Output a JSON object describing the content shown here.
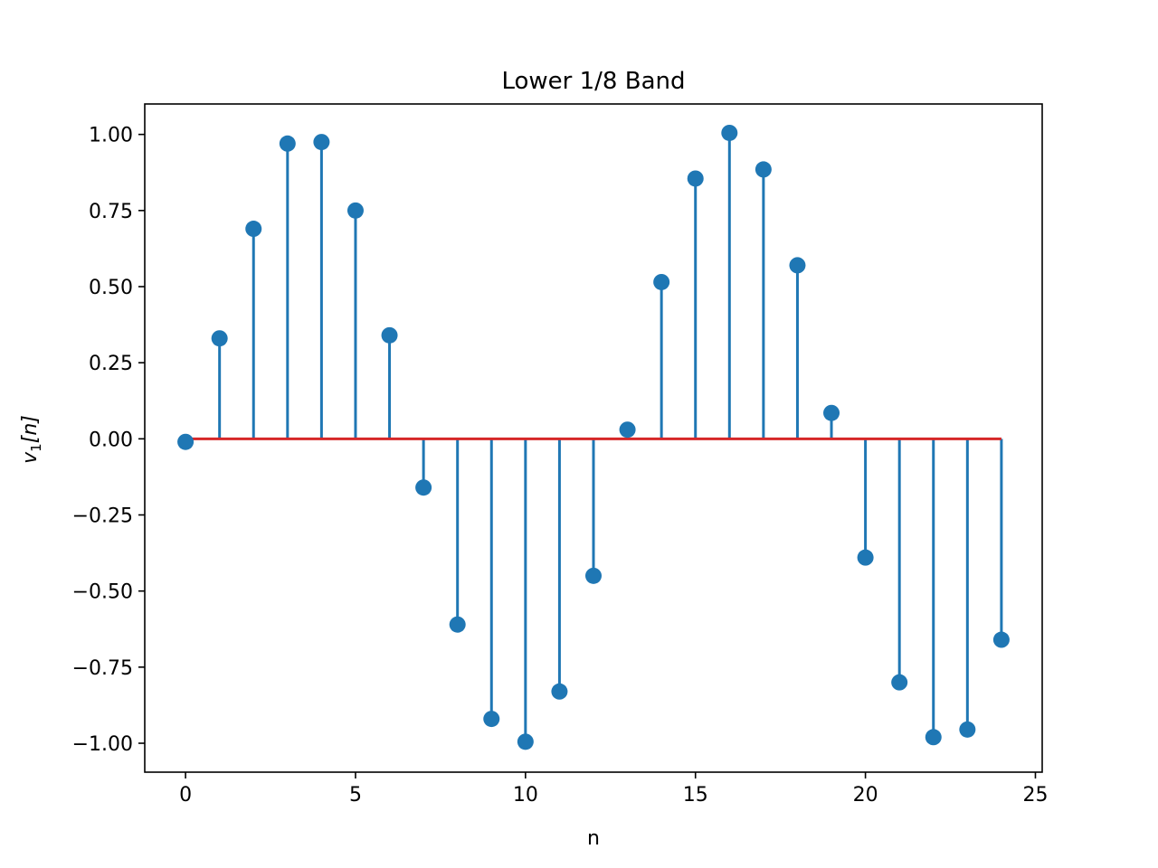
{
  "chart_data": {
    "type": "stem",
    "title": "Lower 1/8 Band",
    "xlabel": "n",
    "ylabel": {
      "base": "v",
      "subscript": "1",
      "suffix": "[n]"
    },
    "xlim": [
      -1.2,
      25.2
    ],
    "ylim": [
      -1.095,
      1.1
    ],
    "xticks": [
      0,
      5,
      10,
      15,
      20,
      25
    ],
    "yticks": [
      1.0,
      0.75,
      0.5,
      0.25,
      0.0,
      -0.25,
      -0.5,
      -0.75,
      -1.0
    ],
    "ytick_labels": [
      "1.00",
      "0.75",
      "0.50",
      "0.25",
      "0.00",
      "−0.25",
      "−0.50",
      "−0.75",
      "−1.00"
    ],
    "grid": false,
    "baseline": 0,
    "colors": {
      "stem": "#1f77b4",
      "marker": "#1f77b4",
      "baseline": "#d62728"
    },
    "x": [
      0,
      1,
      2,
      3,
      4,
      5,
      6,
      7,
      8,
      9,
      10,
      11,
      12,
      13,
      14,
      15,
      16,
      17,
      18,
      19,
      20,
      21,
      22,
      23,
      24
    ],
    "values": [
      -0.01,
      0.33,
      0.69,
      0.97,
      0.975,
      0.75,
      0.34,
      -0.16,
      -0.61,
      -0.92,
      -0.995,
      -0.83,
      -0.45,
      0.03,
      0.515,
      0.855,
      1.005,
      0.885,
      0.57,
      0.085,
      -0.39,
      -0.8,
      -0.98,
      -0.955,
      -0.66
    ]
  }
}
